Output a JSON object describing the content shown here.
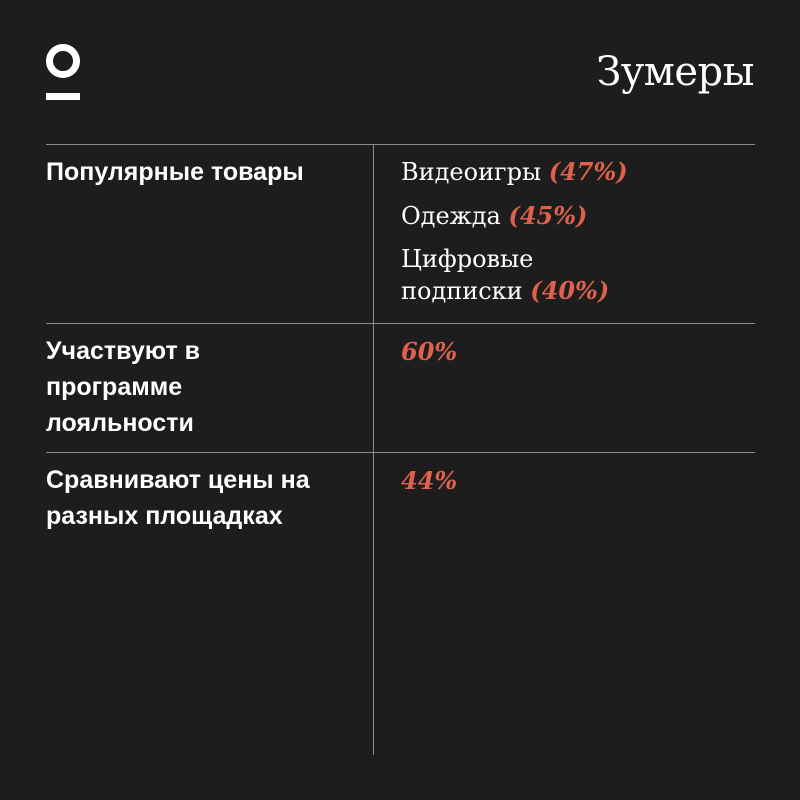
{
  "header": {
    "logo_icon": "circle-bar-logo-icon",
    "title": "Зумеры"
  },
  "colors": {
    "background": "#1d1d1d",
    "text": "#ffffff",
    "accent": "#e0604e",
    "rule": "#8a8a8a"
  },
  "rows": [
    {
      "label": "Популярные товары",
      "items": [
        {
          "text": "Видеоигры",
          "pct": "(47%)"
        },
        {
          "text": "Одежда",
          "pct": "(45%)"
        },
        {
          "text": "Цифровые подписки",
          "pct": "(40%)"
        }
      ]
    },
    {
      "label": "Участвуют в программе лояльности",
      "value": "60%"
    },
    {
      "label": "Сравнивают цены на разных площадках",
      "value": "44%"
    }
  ]
}
